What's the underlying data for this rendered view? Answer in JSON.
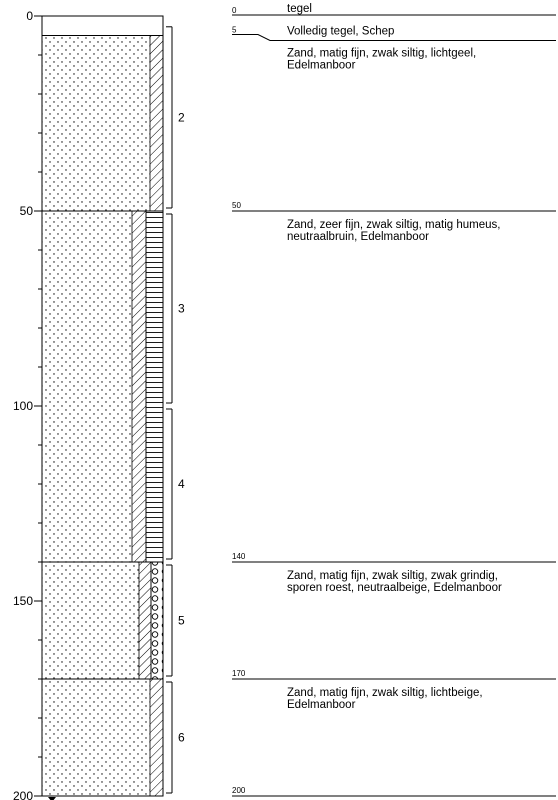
{
  "axis": {
    "ticks": [
      {
        "depth": 0,
        "label": "0"
      },
      {
        "depth": 50,
        "label": "50"
      },
      {
        "depth": 100,
        "label": "100"
      },
      {
        "depth": 150,
        "label": "150"
      },
      {
        "depth": 200,
        "label": "200"
      }
    ],
    "minor_step": 10,
    "range_cm": [
      0,
      200
    ]
  },
  "layers": [
    {
      "top": 0,
      "bottom": 5,
      "lithology": "tegel",
      "pattern": "blank",
      "side_patterns": []
    },
    {
      "top": 5,
      "bottom": 50,
      "lithology": "sand",
      "pattern": "dots",
      "side_patterns": [
        "hatch"
      ]
    },
    {
      "top": 50,
      "bottom": 140,
      "lithology": "sand",
      "pattern": "dots",
      "side_patterns": [
        "hatch",
        "lines"
      ]
    },
    {
      "top": 140,
      "bottom": 170,
      "lithology": "sand",
      "pattern": "dots",
      "side_patterns": [
        "hatch",
        "circles"
      ]
    },
    {
      "top": 170,
      "bottom": 200,
      "lithology": "sand",
      "pattern": "dots",
      "side_patterns": [
        "hatch"
      ]
    }
  ],
  "samples": [
    {
      "number": "2",
      "top": 2,
      "bottom": 50
    },
    {
      "number": "3",
      "top": 50,
      "bottom": 100
    },
    {
      "number": "4",
      "top": 100,
      "bottom": 140
    },
    {
      "number": "5",
      "top": 140,
      "bottom": 170
    },
    {
      "number": "6",
      "top": 170,
      "bottom": 200
    }
  ],
  "descriptions": [
    {
      "depth": "0",
      "depth_cm": 0,
      "lines": [
        "tegel"
      ]
    },
    {
      "depth": "5",
      "depth_cm": 5,
      "lines": [
        "Volledig tegel, Schep"
      ]
    },
    {
      "depth": "",
      "depth_cm": 5,
      "lines": [
        "Zand, matig fijn, zwak siltig, lichtgeel,",
        "Edelmanboor"
      ]
    },
    {
      "depth": "50",
      "depth_cm": 50,
      "lines": [
        "Zand, zeer fijn, zwak siltig, matig humeus,",
        "neutraalbruin, Edelmanboor"
      ]
    },
    {
      "depth": "140",
      "depth_cm": 140,
      "lines": [
        "Zand, matig fijn, zwak siltig, zwak grindig,",
        "sporen roest, neutraalbeige, Edelmanboor"
      ]
    },
    {
      "depth": "170",
      "depth_cm": 170,
      "lines": [
        "Zand, matig fijn, zwak siltig, lichtbeige,",
        "Edelmanboor"
      ]
    },
    {
      "depth": "200",
      "depth_cm": 200,
      "lines": []
    }
  ],
  "colors": {
    "stroke": "#000000",
    "background": "#ffffff"
  }
}
